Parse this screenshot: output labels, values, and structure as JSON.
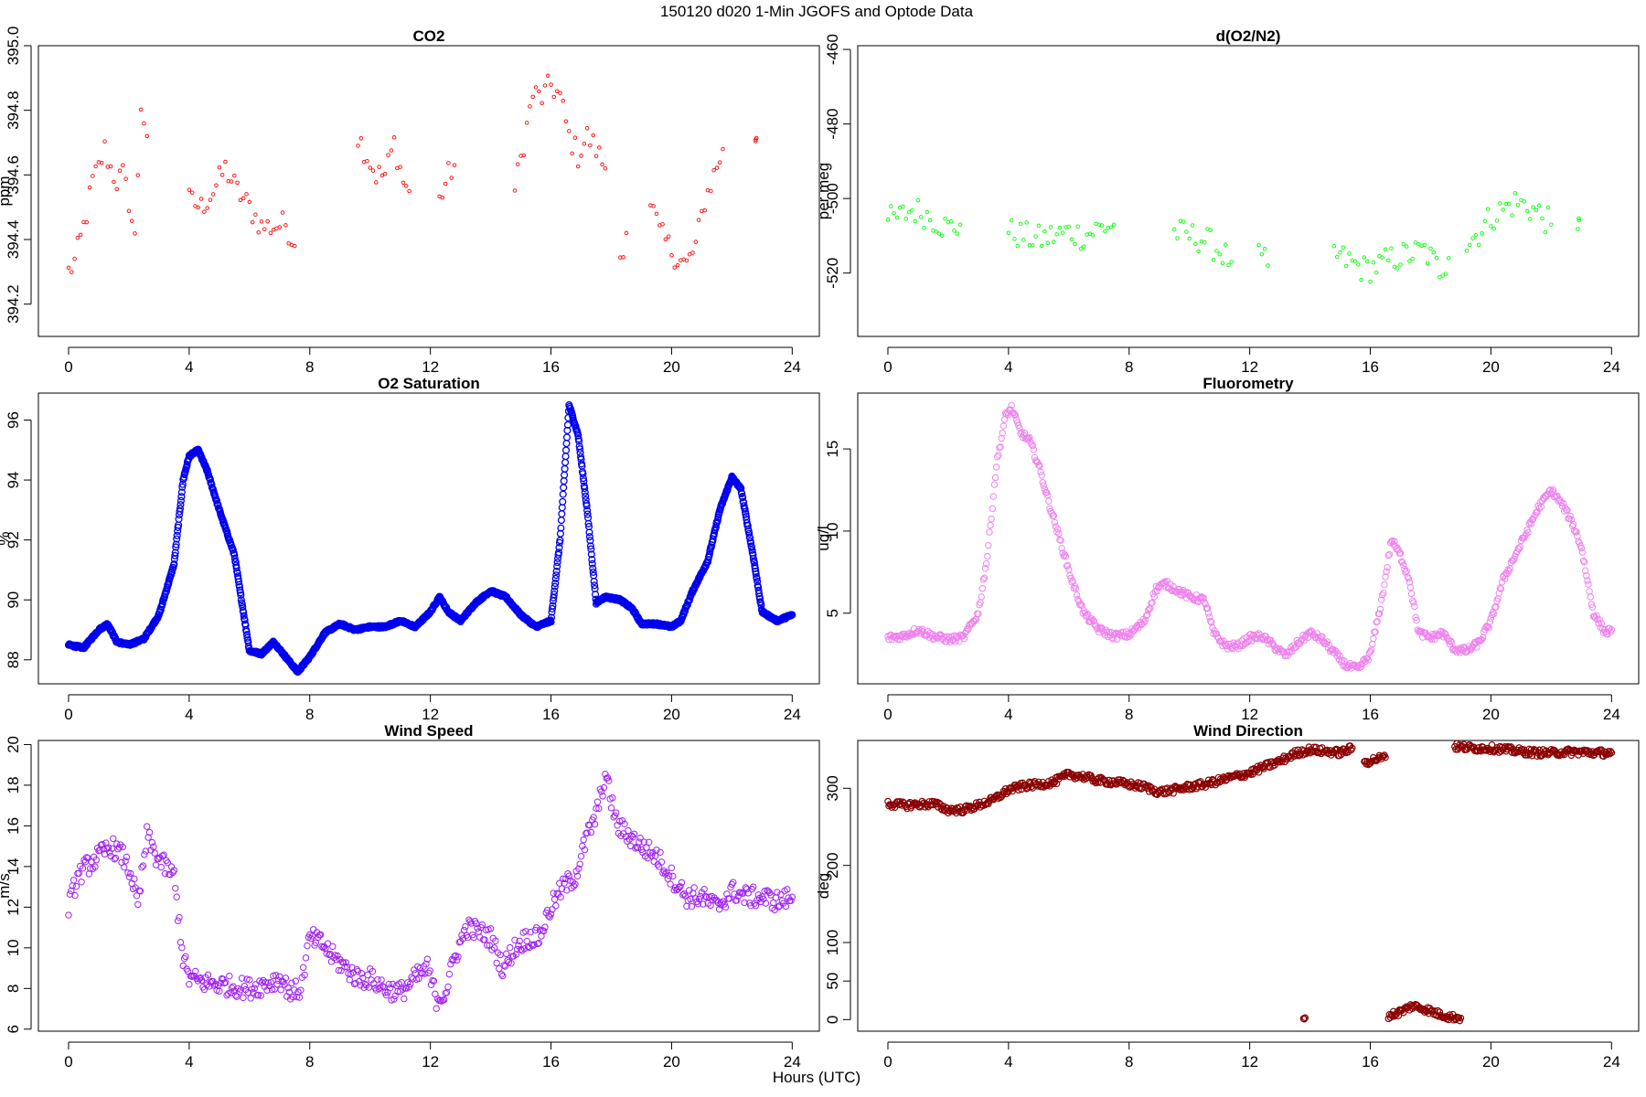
{
  "figure": {
    "title": "150120   d020   1-Min  JGOFS and Optode Data",
    "xlabel": "Hours (UTC)"
  },
  "chart_data": [
    {
      "type": "scatter",
      "title": "CO2",
      "ylabel": "ppm",
      "color": "#ff0000",
      "marker": "small-circle",
      "xlim": [
        -1,
        24.9
      ],
      "ylim": [
        394.1,
        395.0
      ],
      "xticks": [
        0,
        4,
        8,
        12,
        16,
        20,
        24
      ],
      "yticks": [
        394.2,
        394.4,
        394.6,
        394.8,
        395.0
      ],
      "ytick_labels": [
        "394.2",
        "394.4",
        "394.6",
        "394.8",
        "395.0"
      ],
      "segments": [
        {
          "x": [
            0.0,
            0.2,
            0.4,
            0.6,
            0.8,
            1.0,
            1.2,
            1.4,
            1.6,
            1.8,
            2.0,
            2.2,
            2.4,
            2.6
          ],
          "y": [
            394.3,
            394.33,
            394.4,
            394.48,
            394.58,
            394.62,
            394.68,
            394.62,
            394.58,
            394.6,
            394.52,
            394.4,
            394.82,
            394.72
          ]
        },
        {
          "x": [
            4.0,
            4.4,
            4.8,
            5.2,
            5.6,
            6.0,
            6.4,
            6.8,
            7.2,
            7.5
          ],
          "y": [
            394.52,
            394.5,
            394.55,
            394.62,
            394.55,
            394.5,
            394.44,
            394.44,
            394.45,
            394.38
          ]
        },
        {
          "x": [
            9.6,
            9.9,
            10.2,
            10.5,
            10.8,
            11.1,
            11.3
          ],
          "y": [
            394.72,
            394.66,
            394.6,
            394.6,
            394.7,
            394.58,
            394.55
          ]
        },
        {
          "x": [
            12.3,
            12.6,
            12.8
          ],
          "y": [
            394.52,
            394.6,
            394.63
          ]
        },
        {
          "x": [
            14.8,
            15.1,
            15.4,
            15.7,
            16.0,
            16.3,
            16.6,
            16.9,
            17.2,
            17.5,
            17.8
          ],
          "y": [
            394.55,
            394.7,
            394.85,
            394.84,
            394.88,
            394.84,
            394.72,
            394.66,
            394.72,
            394.68,
            394.62
          ]
        },
        {
          "x": [
            18.3,
            18.5
          ],
          "y": [
            394.35,
            394.42
          ]
        },
        {
          "x": [
            19.3,
            19.6,
            19.9,
            20.2,
            20.5,
            20.8,
            21.1,
            21.4,
            21.7
          ],
          "y": [
            394.52,
            394.42,
            394.38,
            394.34,
            394.32,
            394.38,
            394.52,
            394.6,
            394.68
          ]
        },
        {
          "x": [
            22.8
          ],
          "y": [
            394.72
          ]
        }
      ]
    },
    {
      "type": "scatter",
      "title": "d(O2/N2)",
      "ylabel": "per meg",
      "color": "#00ff00",
      "marker": "small-circle",
      "xlim": [
        -1,
        24.9
      ],
      "ylim": [
        -537,
        -459
      ],
      "xticks": [
        0,
        4,
        8,
        12,
        16,
        20,
        24
      ],
      "yticks": [
        -460,
        -480,
        -500,
        -520
      ],
      "ytick_labels": [
        "-460",
        "-480",
        "-500",
        "-520"
      ],
      "segments": [
        {
          "x": [
            0.0,
            0.4,
            0.8,
            1.2,
            1.6,
            2.0,
            2.4
          ],
          "y": [
            -506,
            -505,
            -503,
            -504,
            -506,
            -508,
            -507
          ]
        },
        {
          "x": [
            4.0,
            4.5,
            5.0,
            5.5,
            6.0,
            6.5,
            7.0,
            7.5
          ],
          "y": [
            -509,
            -510,
            -511,
            -510,
            -509,
            -510,
            -508,
            -507
          ]
        },
        {
          "x": [
            9.5,
            10.0,
            10.5,
            11.0,
            11.4
          ],
          "y": [
            -509,
            -510,
            -511,
            -514,
            -517
          ]
        },
        {
          "x": [
            12.3,
            12.6
          ],
          "y": [
            -516,
            -518
          ]
        },
        {
          "x": [
            14.8,
            15.3,
            15.8,
            16.3,
            16.8,
            17.3,
            17.8,
            18.3,
            18.6
          ],
          "y": [
            -515,
            -517,
            -519,
            -518,
            -516,
            -515,
            -514,
            -519,
            -516
          ]
        },
        {
          "x": [
            19.2,
            19.6,
            20.0,
            20.4,
            20.8,
            21.2,
            21.6,
            22.0
          ],
          "y": [
            -512,
            -509,
            -505,
            -503,
            -501,
            -502,
            -504,
            -507
          ]
        },
        {
          "x": [
            22.9
          ],
          "y": [
            -507
          ]
        }
      ]
    },
    {
      "type": "scatter",
      "title": "O2 Saturation",
      "ylabel": "%",
      "color": "#0000ee",
      "marker": "circle",
      "xlim": [
        -1,
        24.9
      ],
      "ylim": [
        87.2,
        96.9
      ],
      "xticks": [
        0,
        4,
        8,
        12,
        16,
        20,
        24
      ],
      "yticks": [
        88,
        90,
        92,
        94,
        96
      ],
      "ytick_labels": [
        "88",
        "90",
        "92",
        "94",
        "96"
      ],
      "segments": [
        {
          "x": [
            0,
            0.5,
            1.0,
            1.3,
            1.6,
            2.0,
            2.5,
            3.0,
            3.5,
            3.8,
            4.0,
            4.3,
            4.6,
            5.0,
            5.5,
            6.0,
            6.4,
            6.8,
            7.2,
            7.6,
            8.0,
            8.5,
            9.0,
            9.5,
            10.0,
            10.5,
            11.0,
            11.5,
            12.0,
            12.3,
            12.6,
            13.0,
            13.5,
            14.0,
            14.5,
            15.0,
            15.5,
            16.0,
            16.3,
            16.6,
            16.9,
            17.2,
            17.5,
            17.8,
            18.3,
            18.7,
            19.0,
            19.5,
            20.0,
            20.3,
            20.7,
            21.2,
            21.6,
            22.0,
            22.3,
            22.7,
            23.0,
            23.5,
            24.0
          ],
          "y": [
            88.5,
            88.4,
            89.0,
            89.2,
            88.6,
            88.5,
            88.7,
            89.5,
            91.2,
            94.0,
            94.8,
            95.0,
            94.3,
            93.0,
            91.5,
            88.3,
            88.2,
            88.6,
            88.1,
            87.6,
            88.1,
            88.9,
            89.2,
            89.0,
            89.1,
            89.1,
            89.3,
            89.1,
            89.6,
            90.1,
            89.6,
            89.3,
            89.9,
            90.3,
            90.1,
            89.5,
            89.1,
            89.3,
            92.0,
            96.5,
            95.5,
            93.0,
            89.9,
            90.1,
            90.0,
            89.7,
            89.2,
            89.2,
            89.1,
            89.3,
            90.3,
            91.3,
            93.0,
            94.1,
            93.7,
            91.5,
            89.6,
            89.3,
            89.5
          ]
        }
      ]
    },
    {
      "type": "scatter",
      "title": "Fluorometry",
      "ylabel": "ug/l",
      "color": "#ee82ee",
      "marker": "circle",
      "xlim": [
        -1,
        24.9
      ],
      "ylim": [
        0.7,
        18.4
      ],
      "xticks": [
        0,
        4,
        8,
        12,
        16,
        20,
        24
      ],
      "yticks": [
        5,
        10,
        15
      ],
      "ytick_labels": [
        "5",
        "10",
        "15"
      ],
      "segments": [
        {
          "x": [
            0,
            0.5,
            1.0,
            1.5,
            2.0,
            2.5,
            3.0,
            3.3,
            3.6,
            3.9,
            4.1,
            4.4,
            4.7,
            5.0,
            5.3,
            5.7,
            6.1,
            6.5,
            7.0,
            7.5,
            8.0,
            8.5,
            8.9,
            9.2,
            9.6,
            10.0,
            10.5,
            10.8,
            11.2,
            11.6,
            12.0,
            12.4,
            12.8,
            13.2,
            13.6,
            14.0,
            14.4,
            14.8,
            15.2,
            15.6,
            16.0,
            16.4,
            16.7,
            17.0,
            17.3,
            17.6,
            18.0,
            18.4,
            18.8,
            19.2,
            19.6,
            20.0,
            20.4,
            20.8,
            21.2,
            21.6,
            22.0,
            22.4,
            22.7,
            23.0,
            23.4,
            23.8,
            24.0
          ],
          "y": [
            3.5,
            3.6,
            4.0,
            3.6,
            3.4,
            3.5,
            5.0,
            8.5,
            14.0,
            17.0,
            17.5,
            16.0,
            15.5,
            14.0,
            12.0,
            9.5,
            7.0,
            5.0,
            4.0,
            3.6,
            3.7,
            4.5,
            6.5,
            6.8,
            6.4,
            6.0,
            5.8,
            3.8,
            3.0,
            3.0,
            3.5,
            3.6,
            3.0,
            2.4,
            3.2,
            3.8,
            3.4,
            2.6,
            1.8,
            1.6,
            2.5,
            6.0,
            9.5,
            8.5,
            7.0,
            3.8,
            3.5,
            3.8,
            2.8,
            2.7,
            3.2,
            4.5,
            7.0,
            8.5,
            10.0,
            11.5,
            12.5,
            11.5,
            10.5,
            9.0,
            5.0,
            3.8,
            4.0
          ]
        }
      ]
    },
    {
      "type": "scatter",
      "title": "Wind Speed",
      "ylabel": "m/s",
      "color": "#a020f0",
      "marker": "circle",
      "xlim": [
        -1,
        24.9
      ],
      "ylim": [
        5.9,
        20.2
      ],
      "xticks": [
        0,
        4,
        8,
        12,
        16,
        20,
        24
      ],
      "yticks": [
        6,
        8,
        10,
        12,
        14,
        16,
        18,
        20
      ],
      "ytick_labels": [
        "6",
        "8",
        "10",
        "12",
        "14",
        "16",
        "18",
        "20"
      ],
      "segments": [
        {
          "x": [
            0,
            0.3,
            0.6,
            1.0,
            1.4,
            1.8,
            2.1,
            2.3,
            2.6,
            2.9,
            3.2,
            3.5,
            3.8,
            4.0,
            4.5,
            5.0,
            5.5,
            6.0,
            6.5,
            7.0,
            7.4,
            7.7,
            8.0,
            8.4,
            8.8,
            9.2,
            9.6,
            10.0,
            10.5,
            11.0,
            11.5,
            11.9,
            12.2,
            12.5,
            12.8,
            13.2,
            13.6,
            14.0,
            14.4,
            14.8,
            15.2,
            15.6,
            16.0,
            16.4,
            16.8,
            17.2,
            17.5,
            17.8,
            18.2,
            18.6,
            19.0,
            19.5,
            20.0,
            20.5,
            21.0,
            21.5,
            22.0,
            22.5,
            23.0,
            23.5,
            24.0
          ],
          "y": [
            12.0,
            13.5,
            14.0,
            14.5,
            15.0,
            14.5,
            13.5,
            12.0,
            15.5,
            14.5,
            14.0,
            13.5,
            9.5,
            8.5,
            8.3,
            8.2,
            8.1,
            8.0,
            8.2,
            8.5,
            7.8,
            8.0,
            10.5,
            10.2,
            9.5,
            9.0,
            8.5,
            8.5,
            8.0,
            7.8,
            8.5,
            9.0,
            7.5,
            7.8,
            9.5,
            11.0,
            10.8,
            10.5,
            9.0,
            10.0,
            10.5,
            10.5,
            12.0,
            13.0,
            13.5,
            15.5,
            16.5,
            18.5,
            16.0,
            15.5,
            15.0,
            14.5,
            13.5,
            12.5,
            12.5,
            12.0,
            12.8,
            12.5,
            12.5,
            12.3,
            12.5
          ]
        }
      ]
    },
    {
      "type": "scatter",
      "title": "Wind Direction",
      "ylabel": "deg",
      "color": "#8b0000",
      "marker": "circle",
      "xlim": [
        -1,
        24.9
      ],
      "ylim": [
        -15,
        362
      ],
      "xticks": [
        0,
        4,
        8,
        12,
        16,
        20,
        24
      ],
      "yticks": [
        0,
        50,
        100,
        200,
        300
      ],
      "ytick_labels": [
        "0",
        "50",
        "100",
        "200",
        "300"
      ],
      "segments": [
        {
          "x": [
            0,
            0.5,
            1.0,
            1.5,
            2.0,
            2.5,
            3.0,
            3.5,
            4.0,
            4.5,
            5.0,
            5.5,
            6.0,
            6.5,
            7.0,
            7.5,
            8.0,
            8.5,
            9.0,
            9.5,
            10.0,
            10.5,
            11.0,
            11.5,
            12.0,
            12.5,
            13.0,
            13.5,
            14.0,
            14.5,
            15.0,
            15.4
          ],
          "y": [
            280,
            278,
            279,
            280,
            272,
            272,
            278,
            285,
            298,
            303,
            305,
            308,
            318,
            315,
            310,
            308,
            305,
            302,
            295,
            298,
            302,
            305,
            310,
            315,
            320,
            328,
            335,
            345,
            350,
            348,
            346,
            352
          ]
        },
        {
          "x": [
            15.8,
            16.2,
            16.5
          ],
          "y": [
            333,
            338,
            340
          ]
        },
        {
          "x": [
            13.8
          ],
          "y": [
            3
          ]
        },
        {
          "x": [
            16.6,
            17.0,
            17.4,
            17.8,
            18.2,
            18.6,
            19.0
          ],
          "y": [
            5,
            10,
            18,
            14,
            8,
            4,
            2
          ]
        },
        {
          "x": [
            18.8,
            19.5,
            20.0,
            20.5,
            21.0,
            21.5,
            22.0,
            22.5,
            23.0,
            23.5,
            24.0
          ],
          "y": [
            354,
            352,
            352,
            350,
            348,
            346,
            346,
            347,
            347,
            346,
            346
          ]
        }
      ]
    }
  ]
}
